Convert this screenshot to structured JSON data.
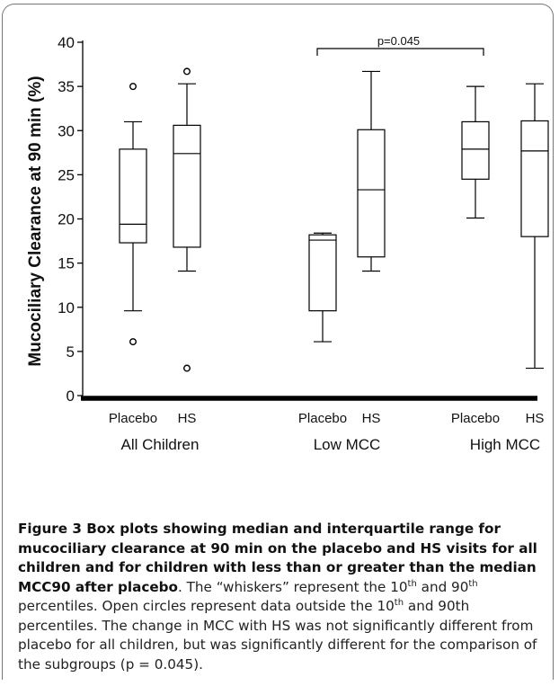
{
  "chart_data": {
    "type": "box",
    "ylabel": "Mucociliary Clearance at 90 min (%)",
    "ylim": [
      0,
      40
    ],
    "yticks": [
      0,
      5,
      10,
      15,
      20,
      25,
      30,
      35,
      40
    ],
    "groups": [
      {
        "label": "All Children",
        "boxes": [
          {
            "category": "Placebo",
            "whisker_low": 9.6,
            "q1": 17.3,
            "median": 19.4,
            "q3": 27.9,
            "whisker_high": 31.0,
            "outliers": [
              35.0,
              6.1
            ]
          },
          {
            "category": "HS",
            "whisker_low": 14.1,
            "q1": 16.8,
            "median": 27.4,
            "q3": 30.6,
            "whisker_high": 35.3,
            "outliers": [
              36.7,
              3.1
            ]
          }
        ]
      },
      {
        "label": "Low MCC",
        "boxes": [
          {
            "category": "Placebo",
            "whisker_low": 6.1,
            "q1": 9.6,
            "median": 17.6,
            "q3": 18.2,
            "whisker_high": 18.4,
            "outliers": []
          },
          {
            "category": "HS",
            "whisker_low": 14.1,
            "q1": 15.7,
            "median": 23.3,
            "q3": 30.1,
            "whisker_high": 36.7,
            "outliers": []
          }
        ]
      },
      {
        "label": "High MCC",
        "boxes": [
          {
            "category": "Placebo",
            "whisker_low": 20.1,
            "q1": 24.5,
            "median": 27.9,
            "q3": 31.0,
            "whisker_high": 35.0,
            "outliers": []
          },
          {
            "category": "HS",
            "whisker_low": 3.1,
            "q1": 18.0,
            "median": 27.7,
            "q3": 31.1,
            "whisker_high": 35.3,
            "outliers": []
          }
        ]
      }
    ],
    "annotations": [
      {
        "text": "p=0.045",
        "from_group": "Low MCC",
        "to_group": "High MCC"
      }
    ]
  },
  "caption": {
    "title": "Figure 3 Box plots showing median and interquartile range for mucociliary clearance at 90 min on the placebo and HS visits for all children and for children with less than or greater than the median MCC90 after placebo",
    "body_1": ". The “whiskers” represent the 10",
    "sup_1": "th",
    "body_2": " and 90",
    "sup_2": "th",
    "body_3": " percentiles. Open circles represent data outside the 10",
    "sup_3": "th",
    "body_4": " and 90th percentiles. The change in MCC with HS was not significantly different from placebo for all children, but was significantly different for the comparison of the subgroups (p = 0.045)."
  }
}
